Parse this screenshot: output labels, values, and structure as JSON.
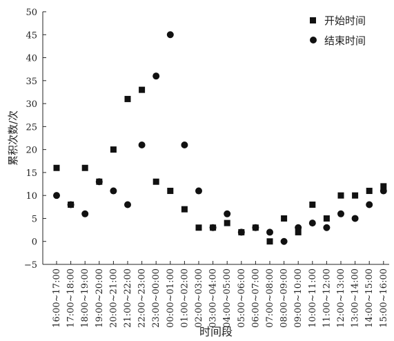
{
  "chart_data": {
    "type": "scatter",
    "xlabel": "时间段",
    "ylabel": "累积次数/次",
    "ylim": [
      -5,
      50
    ],
    "yticks": [
      -5,
      0,
      5,
      10,
      15,
      20,
      25,
      30,
      35,
      40,
      45,
      50
    ],
    "grid": false,
    "legend_position": "top-right",
    "categories": [
      "16:00~17:00",
      "17:00~18:00",
      "18:00~19:00",
      "19:00~20:00",
      "20:00~21:00",
      "21:00~22:00",
      "22:00~23:00",
      "23:00~00:00",
      "00:00~01:00",
      "01:00~02:00",
      "02:00~03:00",
      "03:00~04:00",
      "04:00~05:00",
      "05:00~06:00",
      "06:00~07:00",
      "07:00~08:00",
      "08:00~09:00",
      "09:00~10:00",
      "10:00~11:00",
      "11:00~12:00",
      "12:00~13:00",
      "13:00~14:00",
      "14:00~15:00",
      "15:00~16:00"
    ],
    "series": [
      {
        "name": "开始时间",
        "marker": "square",
        "color": "#111111",
        "values": [
          16,
          8,
          16,
          13,
          20,
          31,
          33,
          13,
          11,
          7,
          3,
          3,
          4,
          2,
          3,
          0,
          5,
          2,
          8,
          5,
          10,
          10,
          11,
          12
        ]
      },
      {
        "name": "结束时间",
        "marker": "circle",
        "color": "#111111",
        "values": [
          10,
          8,
          6,
          13,
          11,
          8,
          21,
          36,
          45,
          21,
          11,
          3,
          6,
          2,
          3,
          2,
          0,
          3,
          4,
          3,
          6,
          5,
          8,
          11
        ]
      }
    ]
  }
}
